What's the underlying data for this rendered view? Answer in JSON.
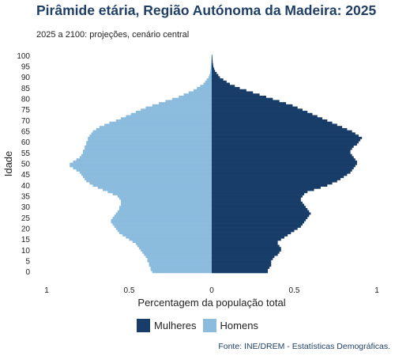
{
  "chart_data": {
    "type": "bar",
    "title": "Pirâmide etária, Região Autónoma da Madeira: 2025",
    "subtitle": "2025 a 2100: projeções, cenário central",
    "xlabel": "Percentagem da população total",
    "ylabel": "Idade",
    "source": "Fonte: INE/DREM - Estatísticas Demográficas.",
    "xlim": [
      -1,
      1
    ],
    "x_ticks": [
      -1,
      -0.5,
      0,
      0.5,
      1
    ],
    "x_tick_labels": [
      "1",
      "0.5",
      "0",
      "0.5",
      "1"
    ],
    "y_ticks": [
      0,
      5,
      10,
      15,
      20,
      25,
      30,
      35,
      40,
      45,
      50,
      55,
      60,
      65,
      70,
      75,
      80,
      85,
      90,
      95,
      100
    ],
    "y_tick_labels": [
      "0",
      "5",
      "10",
      "15",
      "20",
      "25",
      "30",
      "35",
      "40",
      "45",
      "50",
      "55",
      "60",
      "65",
      "70",
      "75",
      "80",
      "85",
      "90",
      "95",
      "100"
    ],
    "legend_position": "bottom",
    "grid": false,
    "ages": [
      0,
      1,
      2,
      3,
      4,
      5,
      6,
      7,
      8,
      9,
      10,
      11,
      12,
      13,
      14,
      15,
      16,
      17,
      18,
      19,
      20,
      21,
      22,
      23,
      24,
      25,
      26,
      27,
      28,
      29,
      30,
      31,
      32,
      33,
      34,
      35,
      36,
      37,
      38,
      39,
      40,
      41,
      42,
      43,
      44,
      45,
      46,
      47,
      48,
      49,
      50,
      51,
      52,
      53,
      54,
      55,
      56,
      57,
      58,
      59,
      60,
      61,
      62,
      63,
      64,
      65,
      66,
      67,
      68,
      69,
      70,
      71,
      72,
      73,
      74,
      75,
      76,
      77,
      78,
      79,
      80,
      81,
      82,
      83,
      84,
      85,
      86,
      87,
      88,
      89,
      90,
      91,
      92,
      93,
      94,
      95,
      96,
      97,
      98,
      99,
      100
    ],
    "series": [
      {
        "name": "Mulheres",
        "color": "#173d68",
        "values": [
          0.34,
          0.34,
          0.35,
          0.36,
          0.36,
          0.36,
          0.37,
          0.38,
          0.4,
          0.41,
          0.42,
          0.42,
          0.41,
          0.4,
          0.4,
          0.42,
          0.44,
          0.46,
          0.48,
          0.5,
          0.52,
          0.54,
          0.55,
          0.56,
          0.57,
          0.58,
          0.59,
          0.6,
          0.59,
          0.58,
          0.57,
          0.56,
          0.55,
          0.54,
          0.54,
          0.55,
          0.56,
          0.58,
          0.62,
          0.66,
          0.7,
          0.73,
          0.76,
          0.78,
          0.8,
          0.82,
          0.84,
          0.85,
          0.86,
          0.87,
          0.88,
          0.88,
          0.87,
          0.86,
          0.85,
          0.84,
          0.84,
          0.85,
          0.86,
          0.88,
          0.89,
          0.9,
          0.91,
          0.89,
          0.87,
          0.85,
          0.82,
          0.79,
          0.76,
          0.73,
          0.7,
          0.67,
          0.64,
          0.61,
          0.58,
          0.55,
          0.52,
          0.49,
          0.45,
          0.41,
          0.37,
          0.33,
          0.29,
          0.25,
          0.21,
          0.17,
          0.14,
          0.11,
          0.09,
          0.07,
          0.05,
          0.04,
          0.03,
          0.02,
          0.015,
          0.01,
          0.008,
          0.006,
          0.005,
          0.004,
          0.003
        ]
      },
      {
        "name": "Homens",
        "color": "#8bbbdd",
        "values": [
          0.36,
          0.37,
          0.37,
          0.38,
          0.38,
          0.39,
          0.39,
          0.4,
          0.41,
          0.42,
          0.43,
          0.44,
          0.45,
          0.46,
          0.48,
          0.5,
          0.52,
          0.54,
          0.56,
          0.57,
          0.58,
          0.59,
          0.6,
          0.61,
          0.61,
          0.6,
          0.59,
          0.58,
          0.57,
          0.56,
          0.56,
          0.55,
          0.55,
          0.55,
          0.56,
          0.57,
          0.6,
          0.63,
          0.66,
          0.69,
          0.72,
          0.74,
          0.76,
          0.77,
          0.78,
          0.79,
          0.8,
          0.82,
          0.84,
          0.86,
          0.86,
          0.84,
          0.82,
          0.8,
          0.79,
          0.78,
          0.78,
          0.77,
          0.77,
          0.76,
          0.76,
          0.75,
          0.75,
          0.74,
          0.73,
          0.72,
          0.7,
          0.68,
          0.65,
          0.62,
          0.58,
          0.55,
          0.52,
          0.49,
          0.46,
          0.43,
          0.4,
          0.36,
          0.32,
          0.28,
          0.24,
          0.2,
          0.17,
          0.14,
          0.11,
          0.09,
          0.07,
          0.05,
          0.04,
          0.03,
          0.02,
          0.015,
          0.01,
          0.008,
          0.006,
          0.005,
          0.004,
          0.003,
          0.002,
          0.001,
          0.001
        ]
      }
    ]
  }
}
